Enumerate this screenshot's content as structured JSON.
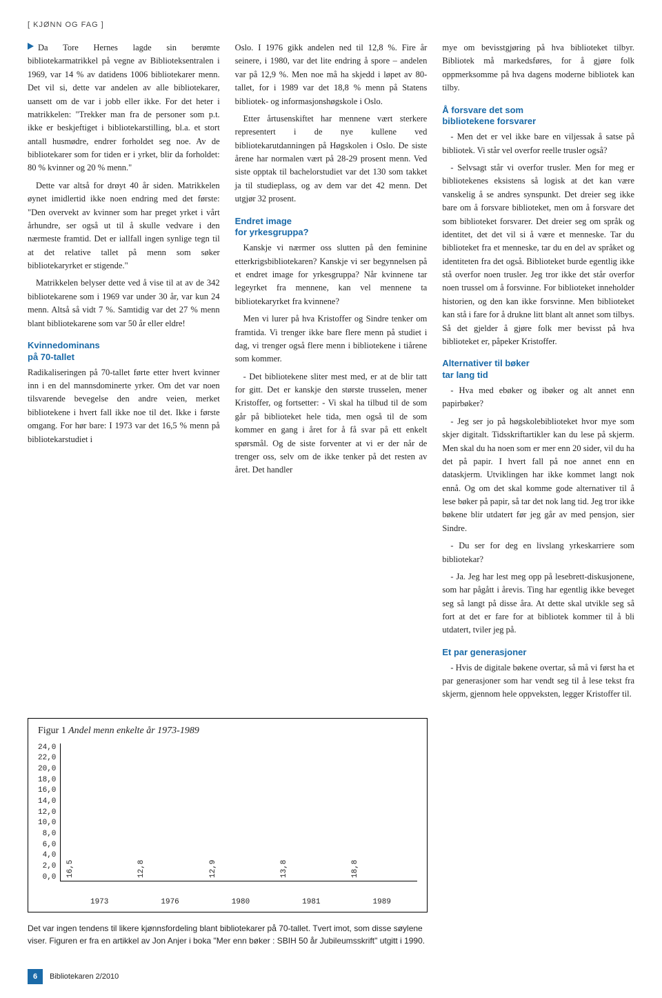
{
  "section_tag": "[ KJØNN OG FAG ]",
  "col1": {
    "p1": "Da Tore Hernes lagde sin berømte bibliotekarmatrikkel på vegne av Biblioteksentralen i 1969, var 14 % av datidens 1006 bibliotekarer menn. Det vil si, dette var andelen av alle bibliotekarer, uansett om de var i jobb eller ikke. For det heter i matrikkelen: \"Trekker man fra de personer som p.t. ikke er beskjeftiget i bibliotekarstilling, bl.a. et stort antall husmødre, endrer forholdet seg noe. Av de bibliotekarer som for tiden er i yrket, blir da forholdet: 80 % kvinner og 20 % menn.\"",
    "p2": "Dette var altså for drøyt 40 år siden. Matrikkelen øynet imidlertid ikke noen endring med det første: \"Den overvekt av kvinner som har preget yrket i vårt århundre, ser også ut til å skulle vedvare i den nærmeste framtid. Det er iallfall ingen synlige tegn til at det relative tallet på menn som søker bibliotekaryrket er stigende.\"",
    "p3": "Matrikkelen belyser dette ved å vise til at av de 342 bibliotekarene som i 1969 var under 30 år, var kun 24 menn. Altså så vidt 7 %. Samtidig var det 27 % menn blant bibliotekarene som var 50 år eller eldre!",
    "sub1a": "Kvinnedominans",
    "sub1b": "på 70-tallet",
    "p4": "Radikaliseringen på 70-tallet førte etter hvert kvinner inn i en del mannsdominerte yrker. Om det var noen tilsvarende bevegelse den andre veien, merket bibliotekene i hvert fall ikke noe til det. Ikke i første omgang. For hør bare: I 1973 var det 16,5 % menn på bibliotekarstudiet i"
  },
  "col2": {
    "p1": "Oslo. I 1976 gikk andelen ned til 12,8 %. Fire år seinere, i 1980, var det lite endring å spore – andelen var på 12,9 %. Men noe må ha skjedd i løpet av 80-tallet, for i 1989 var det 18,8 % menn på Statens bibliotek- og informasjonshøgskole i Oslo.",
    "p2": "Etter årtusenskiftet har mennene vært sterkere representert i de nye kullene ved bibliotekarutdanningen på Høgskolen i Oslo. De siste årene har normalen vært på 28-29 prosent menn. Ved siste opptak til bachelorstudiet var det 130 som takket ja til studieplass, og av dem var det 42 menn. Det utgjør 32 prosent.",
    "sub1a": "Endret image",
    "sub1b": "for yrkesgruppa?",
    "p3": "Kanskje vi nærmer oss slutten på den feminine etterkrigsbibliotekaren? Kanskje vi ser begynnelsen på et endret image for yrkesgruppa? Når kvinnene tar legeyrket fra mennene, kan vel mennene ta bibliotekaryrket fra kvinnene?",
    "p4": "Men vi lurer på hva Kristoffer og Sindre tenker om framtida. Vi trenger ikke bare flere menn på studiet i dag, vi trenger også flere menn i bibliotekene i tiårene som kommer.",
    "p5": "- Det bibliotekene sliter mest med, er at de blir tatt for gitt. Det er kanskje den største trusselen, mener Kristoffer, og fortsetter: - Vi skal ha tilbud til de som går på biblioteket hele tida, men også til de som kommer en gang i året for å få svar på ett enkelt spørsmål. Og de siste forventer at vi er der når de trenger oss, selv om de ikke tenker på det resten av året. Det handler"
  },
  "col3": {
    "p1": "mye om bevisstgjøring på hva biblioteket tilbyr. Bibliotek må markedsføres, for å gjøre folk oppmerksomme på hva dagens moderne bibliotek kan tilby.",
    "sub1a": "Å forsvare det som",
    "sub1b": "bibliotekene forsvarer",
    "p2": "- Men det er vel ikke bare en viljessak å satse på bibliotek. Vi står vel overfor reelle trusler også?",
    "p3": "- Selvsagt står vi overfor trusler. Men for meg er bibliotekenes eksistens så logisk at det kan være vanskelig å se andres synspunkt. Det dreier seg ikke bare om å forsvare biblioteket, men om å forsvare det som biblioteket forsvarer. Det dreier seg om språk og identitet, det det vil si å være et menneske. Tar du biblioteket fra et menneske, tar du en del av språket og identiteten fra det også. Biblioteket burde egentlig ikke stå overfor noen trusler. Jeg tror ikke det står overfor noen trussel om å forsvinne. For biblioteket inneholder historien, og den kan ikke forsvinne. Men biblioteket kan stå i fare for å drukne litt blant alt annet som tilbys. Så det gjelder å gjøre folk mer bevisst på hva biblioteket er, påpeker Kristoffer.",
    "sub2a": "Alternativer til bøker",
    "sub2b": "tar lang tid",
    "p4": "- Hva med ebøker og ibøker og alt annet enn papirbøker?",
    "p5": "- Jeg ser jo på høgskolebiblioteket hvor mye som skjer digitalt. Tidsskriftartikler kan du lese på skjerm. Men skal du ha noen som er mer enn 20 sider, vil du ha det på papir. I hvert fall på noe annet enn en dataskjerm. Utviklingen har ikke kommet langt nok ennå. Og om det skal komme gode alternativer til å lese bøker på papir, så tar det nok lang tid. Jeg tror ikke bøkene blir utdatert før jeg går av med pensjon, sier Sindre.",
    "p6": "- Du ser for deg en livslang yrkeskarriere som bibliotekar?",
    "p7": "- Ja. Jeg har lest meg opp på lesebrett-diskusjonene, som har pågått i årevis. Ting har egentlig ikke beveget seg så langt på disse åra. At dette skal utvikle seg så fort at det er fare for at bibliotek kommer til å bli utdatert, tviler jeg på.",
    "sub3": "Et par generasjoner",
    "p8": "- Hvis de digitale bøkene overtar, så må vi først ha et par generasjoner som har vendt seg til å lese tekst fra skjerm, gjennom hele oppveksten, legger Kristoffer til."
  },
  "chart": {
    "title_prefix": "Figur 1",
    "title_rest": "Andel menn enkelte år 1973-1989",
    "ymax": 24.0,
    "ytick_step": 2.0,
    "yticks": [
      "24,0",
      "22,0",
      "20,0",
      "18,0",
      "16,0",
      "14,0",
      "12,0",
      "10,0",
      "8,0",
      "6,0",
      "4,0",
      "2,0",
      "0,0"
    ],
    "bars": [
      {
        "year": "1973",
        "value": 16.5,
        "label": "16,5"
      },
      {
        "year": "1976",
        "value": 12.8,
        "label": "12,8"
      },
      {
        "year": "1980",
        "value": 12.9,
        "label": "12,9"
      },
      {
        "year": "1981",
        "value": 13.8,
        "label": "13,8"
      },
      {
        "year": "1989",
        "value": 18.8,
        "label": "18,8"
      }
    ],
    "bar_color": "#000000",
    "background_color": "#ffffff"
  },
  "caption": "Det var ingen tendens til likere kjønnsfordeling blant bibliotekarer på 70-tallet. Tvert imot, som disse søylene viser. Figuren er fra en artikkel av Jon Anjer i boka \"Mer enn bøker : SBIH 50 år Jubileumsskrift\" utgitt i 1990.",
  "footer": {
    "page": "6",
    "pub": "Bibliotekaren 2/2010"
  }
}
